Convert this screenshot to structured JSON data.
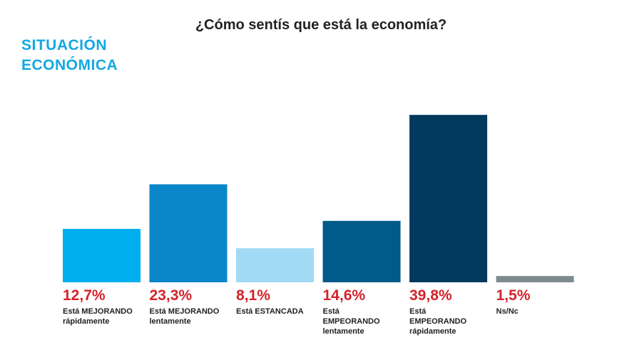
{
  "chart_data": {
    "type": "bar",
    "title": "¿Cómo sentís que está la economía?",
    "section_label": "SITUACIÓN ECONÓMICA",
    "categories": [
      "Está MEJORANDO rápidamente",
      "Está MEJORANDO lentamente",
      "Está ESTANCADA",
      "Está EMPEORANDO lentamente",
      "Está EMPEORANDO rápidamente",
      "Ns/Nc"
    ],
    "values": [
      12.7,
      23.3,
      8.1,
      14.6,
      39.8,
      1.5
    ],
    "value_labels": [
      "12,7%",
      "23,3%",
      "8,1%",
      "14,6%",
      "39,8%",
      "1,5%"
    ],
    "colors": [
      "#00aeef",
      "#0a87c9",
      "#a0daf5",
      "#005a8a",
      "#003a5e",
      "#7f8c8f"
    ]
  }
}
